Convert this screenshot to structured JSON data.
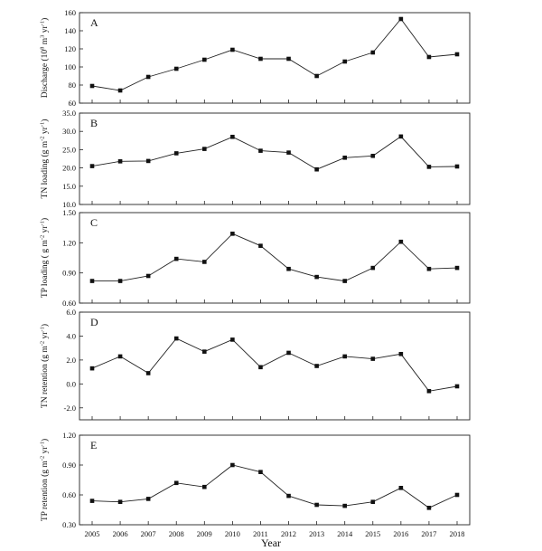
{
  "chart_data": [
    {
      "type": "line",
      "panel_letter": "A",
      "ylabel": "Discharge (10^8 m^3 yr^-1)",
      "ylim": [
        60,
        160
      ],
      "yticks": [
        "60",
        "80",
        "100",
        "120",
        "140",
        "160"
      ],
      "x": [
        2005,
        2006,
        2007,
        2008,
        2009,
        2010,
        2011,
        2012,
        2013,
        2014,
        2015,
        2016,
        2017,
        2018
      ],
      "values": [
        79,
        74,
        89,
        98,
        108,
        119,
        109,
        109,
        90,
        106,
        116,
        153,
        111,
        114
      ]
    },
    {
      "type": "line",
      "panel_letter": "B",
      "ylabel": "TN loading (g m^-2 yr^-1)",
      "ylim": [
        10,
        35
      ],
      "yticks": [
        "10.0",
        "15.0",
        "20.0",
        "25.0",
        "30.0",
        "35.0"
      ],
      "x": [
        2005,
        2006,
        2007,
        2008,
        2009,
        2010,
        2011,
        2012,
        2013,
        2014,
        2015,
        2016,
        2017,
        2018
      ],
      "values": [
        20.5,
        21.8,
        21.9,
        24.0,
        25.2,
        28.5,
        24.7,
        24.2,
        19.6,
        22.8,
        23.3,
        28.6,
        20.3,
        20.4
      ]
    },
    {
      "type": "line",
      "panel_letter": "C",
      "ylabel": "TP loading ( g m^-2 yr^-1)",
      "ylim": [
        0.6,
        1.5
      ],
      "yticks": [
        "0.60",
        "0.90",
        "1.20",
        "1.50"
      ],
      "x": [
        2005,
        2006,
        2007,
        2008,
        2009,
        2010,
        2011,
        2012,
        2013,
        2014,
        2015,
        2016,
        2017,
        2018
      ],
      "values": [
        0.82,
        0.82,
        0.87,
        1.04,
        1.01,
        1.29,
        1.17,
        0.94,
        0.86,
        0.82,
        0.95,
        1.21,
        0.94,
        0.95
      ]
    },
    {
      "type": "line",
      "panel_letter": "D",
      "ylabel": "TN retention (g m^-2 yr^-1)",
      "ylim": [
        -3,
        6
      ],
      "yticks": [
        "-2.0",
        "0.0",
        "2.0",
        "4.0",
        "6.0"
      ],
      "x": [
        2005,
        2006,
        2007,
        2008,
        2009,
        2010,
        2011,
        2012,
        2013,
        2014,
        2015,
        2016,
        2017,
        2018
      ],
      "values": [
        1.3,
        2.3,
        0.9,
        3.8,
        2.7,
        3.7,
        1.4,
        2.6,
        1.5,
        2.3,
        2.1,
        2.5,
        -0.6,
        -0.2
      ]
    },
    {
      "type": "line",
      "panel_letter": "E",
      "ylabel": "TP retention (g m^-2 yr^-1)",
      "ylim": [
        0.3,
        1.2
      ],
      "yticks": [
        "0.30",
        "0.60",
        "0.90",
        "1.20"
      ],
      "x": [
        2005,
        2006,
        2007,
        2008,
        2009,
        2010,
        2011,
        2012,
        2013,
        2014,
        2015,
        2016,
        2017,
        2018
      ],
      "values": [
        0.54,
        0.53,
        0.56,
        0.72,
        0.68,
        0.9,
        0.83,
        0.59,
        0.5,
        0.49,
        0.53,
        0.67,
        0.47,
        0.6
      ]
    }
  ],
  "xlabel": "Year",
  "xticks": [
    "2005",
    "2006",
    "2007",
    "2008",
    "2009",
    "2010",
    "2011",
    "2012",
    "2013",
    "2014",
    "2015",
    "2016",
    "2017",
    "2018"
  ],
  "style": {
    "line_color": "#222222",
    "marker_color": "#111111",
    "marker": "square"
  }
}
